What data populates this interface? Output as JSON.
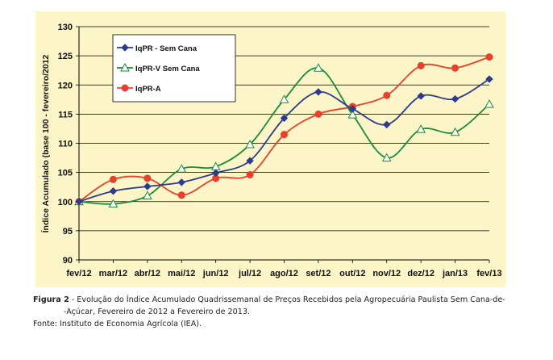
{
  "chart_data": {
    "type": "line",
    "categories": [
      "fev/12",
      "mar/12",
      "abr/12",
      "mai/12",
      "jun/12",
      "jul/12",
      "ago/12",
      "set/12",
      "out/12",
      "nov/12",
      "dez/12",
      "jan/13",
      "fev/13"
    ],
    "ylabel": "Índice Acumulado (base 100 - fevereiro/2012",
    "ylim": [
      90,
      130
    ],
    "yticks": [
      90,
      95,
      100,
      105,
      110,
      115,
      120,
      125,
      130
    ],
    "grid": true,
    "legend_position": "top-left",
    "series": [
      {
        "name": "IqPR - Sem Cana",
        "color": "#2e3a8c",
        "marker": "diamond",
        "values": [
          100,
          101.8,
          102.6,
          103.3,
          104.9,
          107.0,
          114.3,
          118.8,
          115.9,
          113.2,
          118.1,
          117.6,
          121.0
        ]
      },
      {
        "name": "IqPR-V Sem Cana",
        "color": "#1e8a3a",
        "marker": "triangle",
        "values": [
          100,
          99.6,
          101.0,
          105.6,
          106.0,
          109.8,
          117.5,
          122.9,
          114.9,
          107.5,
          112.4,
          111.9,
          116.7
        ]
      },
      {
        "name": "IqPR-A",
        "color": "#e8402a",
        "marker": "circle",
        "values": [
          100,
          103.8,
          104.0,
          101.1,
          104.0,
          104.6,
          111.5,
          115.0,
          116.3,
          118.2,
          123.3,
          122.9,
          124.8
        ]
      }
    ]
  },
  "caption": {
    "figure_label": "Figura 2",
    "line1": " - Evolução do Índice Acumulado Quadrissemanal de Preços Recebidos pela Agropecuária Paulista Sem Cana-de-",
    "line2": "-Açúcar, Fevereiro de 2012 a Fevereiro de 2013.",
    "source": "Fonte: Instituto de Economia Agrícola (IEA)."
  }
}
